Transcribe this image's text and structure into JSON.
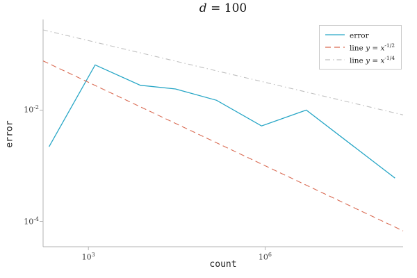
{
  "title": {
    "text": "d = 100",
    "var": "d",
    "rest": " = 100"
  },
  "chart_data": {
    "type": "line",
    "title": "d = 100",
    "xlabel": "count",
    "ylabel": "error",
    "xscale": "log",
    "yscale": "log",
    "xlim": [
      170,
      220000000
    ],
    "ylim": [
      3.5e-05,
      0.38
    ],
    "grid": false,
    "legend_position": "top-right",
    "xticks": [
      {
        "value": 1000,
        "base": "10",
        "exp": "3"
      },
      {
        "value": 1000000,
        "base": "10",
        "exp": "6"
      }
    ],
    "yticks": [
      {
        "value": 0.01,
        "base": "10",
        "exp": "-2"
      },
      {
        "value": 0.0001,
        "base": "10",
        "exp": "-4"
      }
    ],
    "series": [
      {
        "name": "error",
        "color": "#27a6c6",
        "style": "solid",
        "x": [
          215,
          1300,
          7600,
          30000,
          150000,
          870000,
          5000000,
          160000000
        ],
        "y": [
          0.0022,
          0.065,
          0.028,
          0.024,
          0.015,
          0.0052,
          0.01,
          0.0006
        ]
      },
      {
        "name": "line y = x^(-1/2)",
        "color": "#d96a52",
        "style": "dashed",
        "x": [
          170,
          220000000
        ],
        "y": [
          0.0767,
          6.74e-05
        ]
      },
      {
        "name": "line y = x^(-1/4)",
        "color": "#bfbfbf",
        "style": "dashdot",
        "x": [
          170,
          220000000
        ],
        "y": [
          0.277,
          0.00821
        ]
      }
    ],
    "legend": [
      {
        "pre": "error",
        "math": "",
        "sup": ""
      },
      {
        "pre": "line ",
        "math": "y = x",
        "sup": "-1/2"
      },
      {
        "pre": "line ",
        "math": "y = x",
        "sup": "-1/4"
      }
    ]
  }
}
